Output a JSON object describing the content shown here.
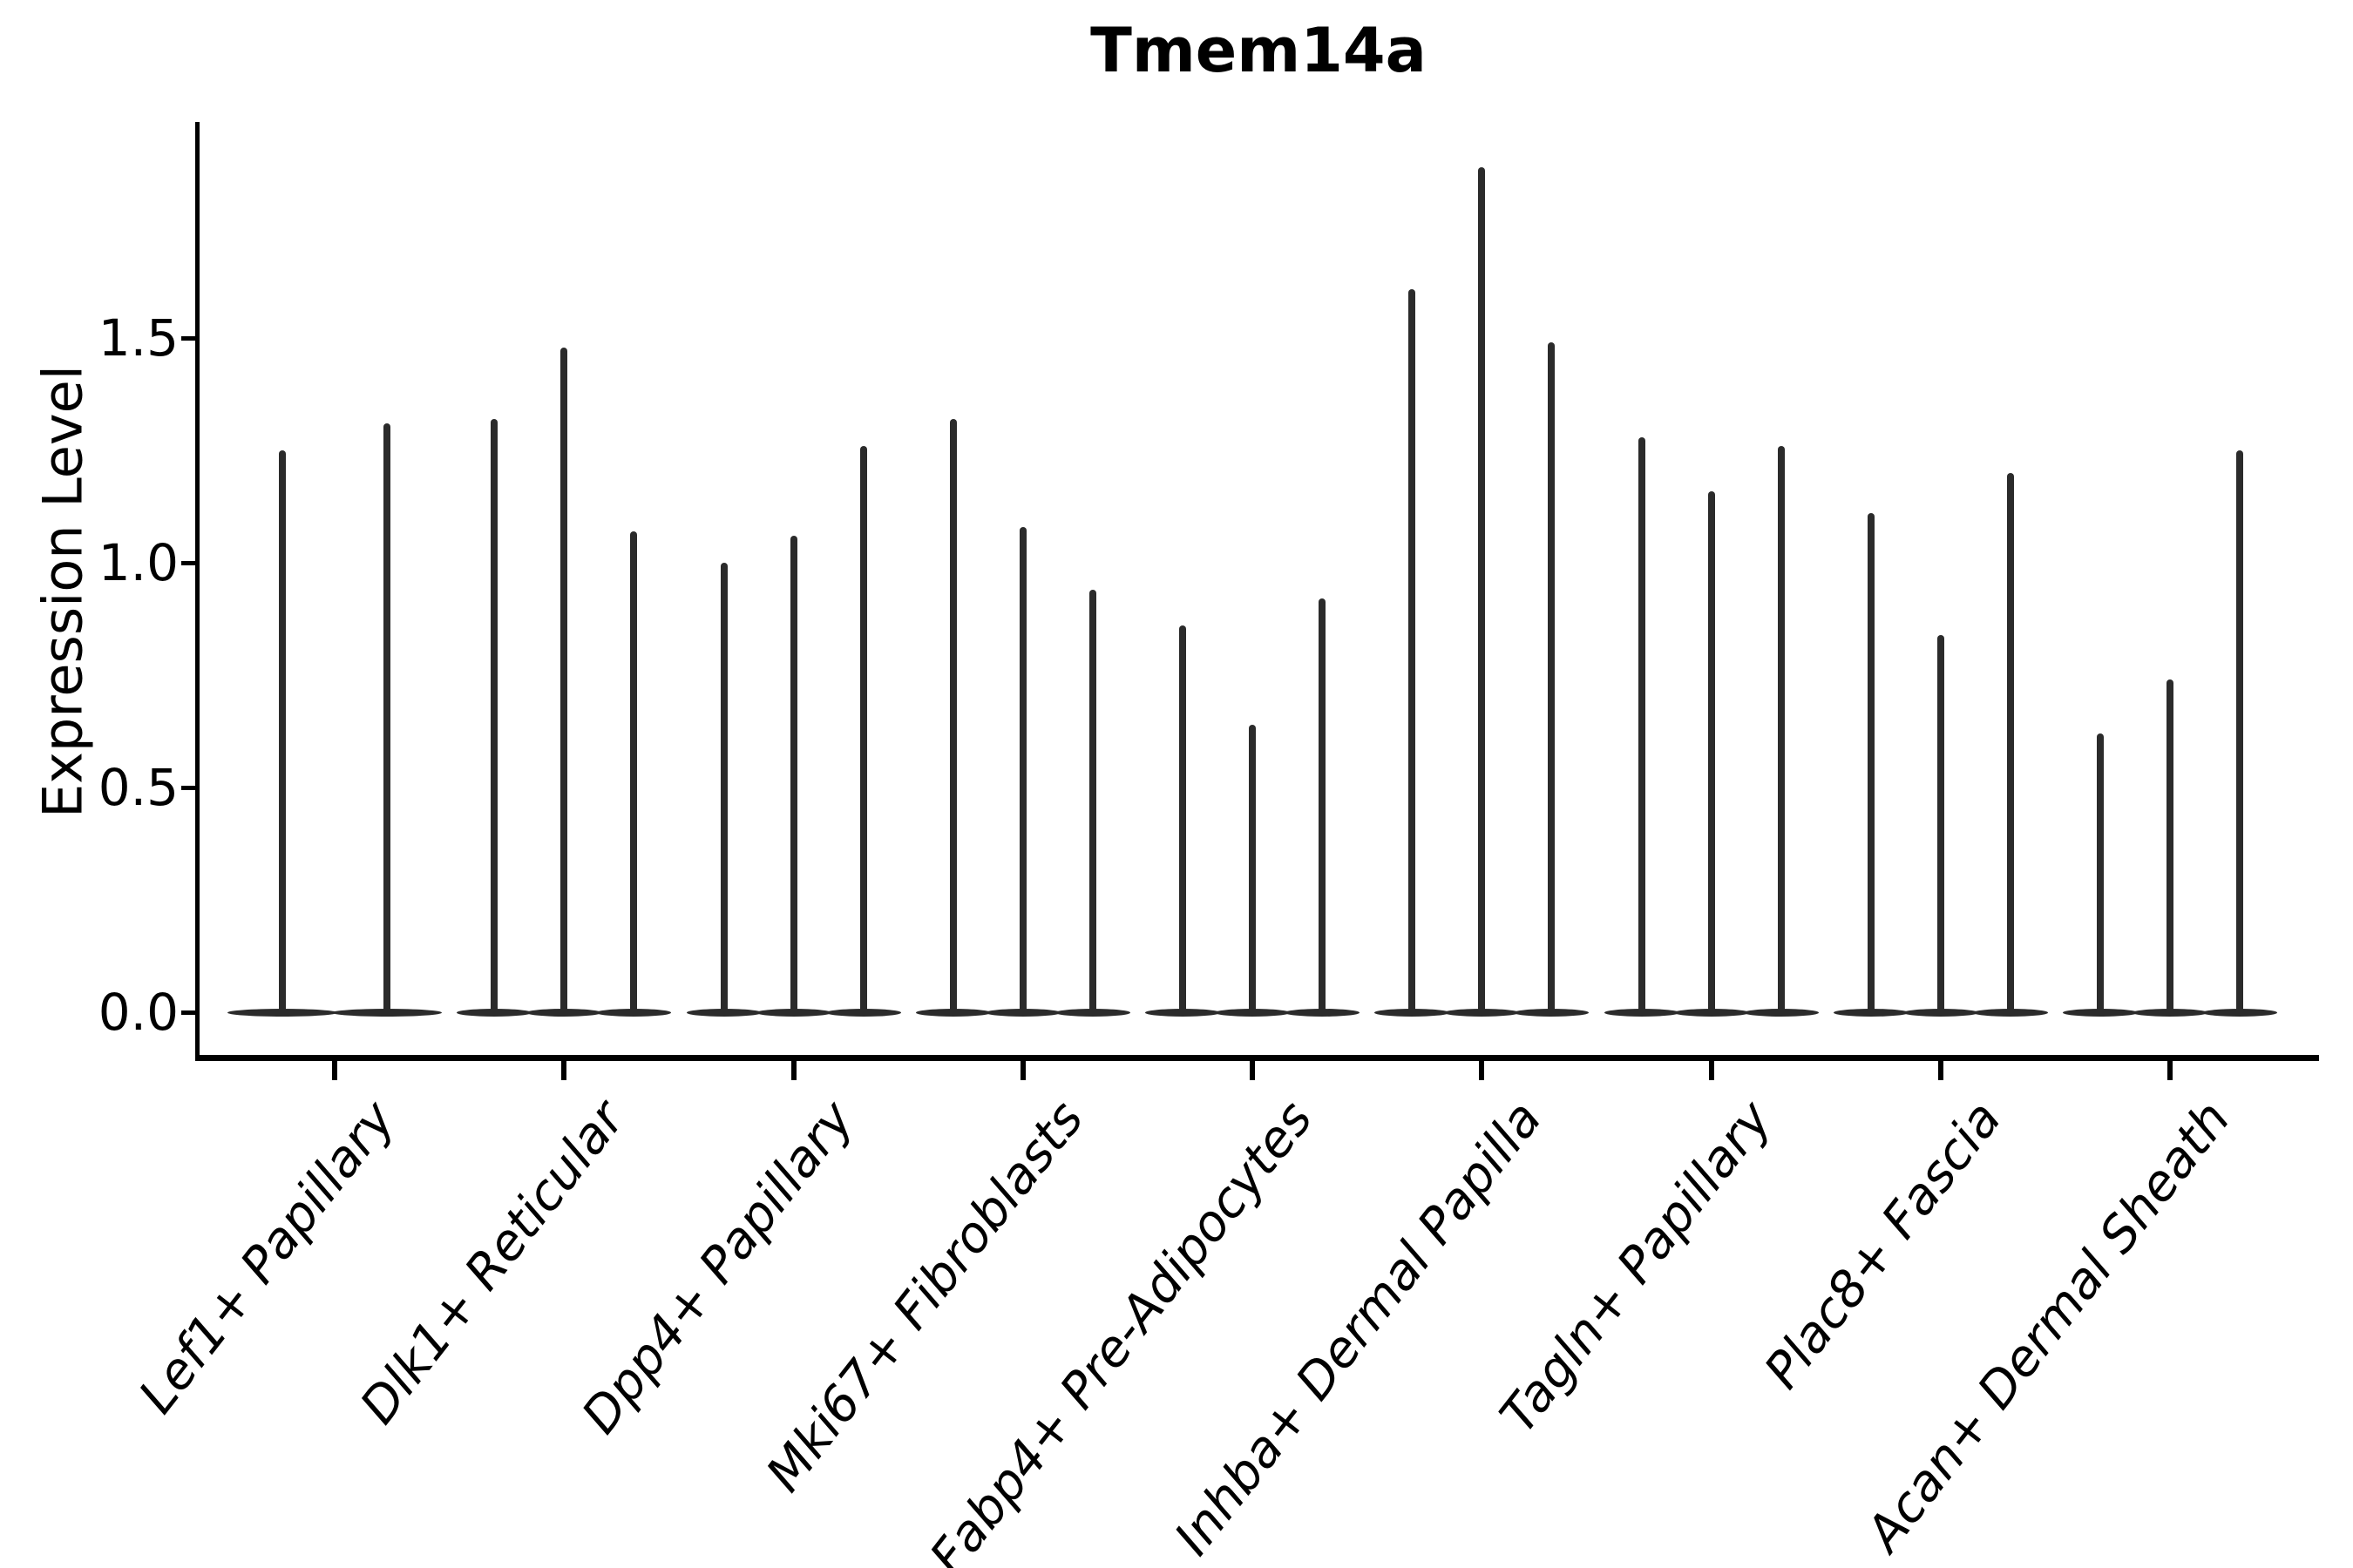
{
  "figure": {
    "background": "#ffffff",
    "ink_color": "#000000",
    "violin_color": "#2b2b2b"
  },
  "chart_data": {
    "type": "violin",
    "title": "Tmem14a",
    "ylabel": "Expression Level",
    "xlabel": "",
    "ylim": [
      -0.09,
      1.98
    ],
    "ytick_labels": [
      "0.0",
      "0.5",
      "1.0",
      "1.5"
    ],
    "ytick_values": [
      0.0,
      0.5,
      1.0,
      1.5
    ],
    "grid": false,
    "legend_position": "none",
    "x_label_rotation_deg": 52,
    "categories": [
      "Lef1+ Papillary",
      "Dlk1+ Reticular",
      "Dpp4+ Papillary",
      "Mki67+ Fibroblasts",
      "Fabp4+ Pre-Adipocytes",
      "Inhba+ Dermal Papilla",
      "Tagln+ Papillary",
      "Plac8+ Fascia",
      "Acan+ Dermal Sheath"
    ],
    "series": [
      {
        "category": "Lef1+ Papillary",
        "violin_peaks": [
          1.25,
          1.31
        ]
      },
      {
        "category": "Dlk1+ Reticular",
        "violin_peaks": [
          1.32,
          1.48,
          1.07
        ]
      },
      {
        "category": "Dpp4+ Papillary",
        "violin_peaks": [
          1.0,
          1.06,
          1.26
        ]
      },
      {
        "category": "Mki67+ Fibroblasts",
        "violin_peaks": [
          1.32,
          1.08,
          0.94
        ]
      },
      {
        "category": "Fabp4+ Pre-Adipocytes",
        "violin_peaks": [
          0.86,
          0.64,
          0.92
        ]
      },
      {
        "category": "Inhba+ Dermal Papilla",
        "violin_peaks": [
          1.61,
          1.88,
          1.49
        ]
      },
      {
        "category": "Tagln+ Papillary",
        "violin_peaks": [
          1.28,
          1.16,
          1.26
        ]
      },
      {
        "category": "Plac8+ Fascia",
        "violin_peaks": [
          1.11,
          0.84,
          1.2
        ]
      },
      {
        "category": "Acan+ Dermal Sheath",
        "violin_peaks": [
          0.62,
          0.74,
          1.25
        ]
      }
    ],
    "baseline_value": 0.0
  }
}
